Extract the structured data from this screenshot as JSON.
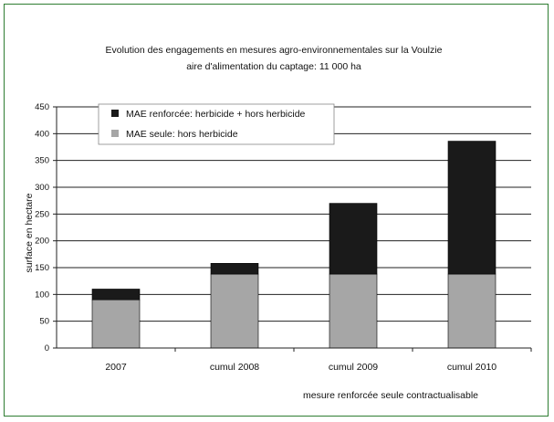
{
  "chart_data": {
    "type": "bar",
    "stacked": true,
    "title": "Evolution des engagements en mesures agro-environnementales sur la Voulzie",
    "subtitle": "aire d'alimentation du captage: 11 000 ha",
    "ylabel": "surface en hectare",
    "xlabel": "mesure renforcée seule contractualisable",
    "ylim": [
      0,
      450
    ],
    "yticks": [
      "0",
      "50",
      "100",
      "150",
      "200",
      "250",
      "300",
      "350",
      "400",
      "450"
    ],
    "categories": [
      "2007",
      "cumul 2008",
      "cumul 2009",
      "cumul 2010"
    ],
    "series": [
      {
        "name": "MAE seule: hors herbicide",
        "values": [
          90,
          138,
          138,
          138
        ],
        "color": "#a6a6a6"
      },
      {
        "name": "MAE renforcée: herbicide + hors herbicide",
        "values": [
          20,
          20,
          132,
          248
        ],
        "color": "#1a1a1a"
      }
    ],
    "legend_position": "top-left",
    "grid": true
  }
}
